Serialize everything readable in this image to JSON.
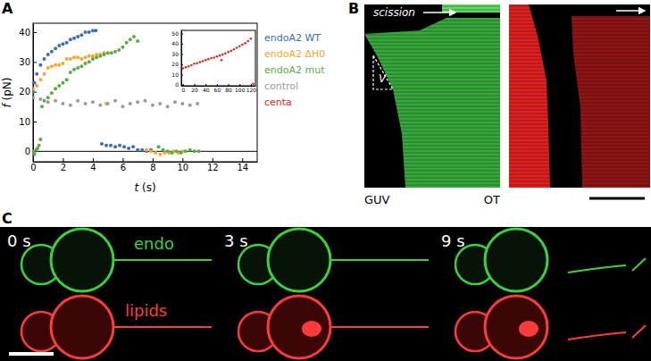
{
  "panel_labels": [
    "A",
    "B",
    "C"
  ],
  "chart_data": [
    {
      "type": "scatter",
      "x_label": "t (s)",
      "y_label": "f (pN)",
      "xlim": [
        0,
        15
      ],
      "ylim": [
        -3.5,
        43
      ],
      "xticks": [
        0,
        2,
        4,
        6,
        8,
        10,
        12,
        14
      ],
      "yticks": [
        0,
        10,
        20,
        30,
        40
      ],
      "hlines": [
        0
      ],
      "marker": "circle",
      "legend": "right",
      "series": [
        {
          "name": "endoA2 WT",
          "color": "#3a6fb8",
          "x": [
            0,
            0.1,
            0.25,
            0.5,
            0.75,
            1,
            1.25,
            1.5,
            1.75,
            2,
            2.25,
            2.5,
            2.75,
            3,
            3.25,
            3.5,
            3.75,
            4,
            4.2,
            4.6,
            4.9,
            5.2,
            5.5,
            5.8,
            6.1,
            6.4,
            6.7,
            7,
            7.3,
            7.6,
            7.9
          ],
          "values": [
            20,
            23,
            26,
            29,
            31,
            32.5,
            33.5,
            34.5,
            35.5,
            36,
            36.5,
            37.5,
            38,
            38.5,
            39,
            40,
            40,
            40.5,
            40.5,
            2.5,
            2,
            2,
            1.5,
            2,
            1.5,
            1,
            1.5,
            0.5,
            0.5,
            0,
            0.5
          ]
        },
        {
          "name": "endoA2 ΔH0",
          "color": "#f2a72e",
          "x": [
            0,
            0.25,
            0.5,
            0.75,
            1,
            1.25,
            1.5,
            1.75,
            2,
            2.25,
            2.5,
            2.75,
            3,
            3.25,
            3.5,
            3.75,
            4,
            4.25,
            4.5,
            4.75,
            4.9,
            7.6,
            7.9,
            8.2,
            8.5,
            8.8,
            9.1,
            9.4,
            9.7,
            10
          ],
          "values": [
            21,
            22,
            24,
            26,
            28,
            28.5,
            29,
            29,
            29.5,
            31,
            31,
            31.5,
            31.5,
            31,
            31.5,
            32,
            32,
            32.5,
            32.5,
            33,
            16,
            0.5,
            0,
            -0.5,
            -1,
            -0.5,
            -0.5,
            0,
            -0.5,
            0
          ]
        },
        {
          "name": "endoA2 mut",
          "color": "#5aab46",
          "x": [
            0,
            0.1,
            0.2,
            0.3,
            0.4,
            0.5,
            0.6,
            0.75,
            1,
            1.25,
            1.5,
            1.75,
            2,
            2.25,
            2.5,
            2.75,
            3,
            3.25,
            3.5,
            3.75,
            4,
            4.25,
            4.5,
            4.75,
            5,
            5.25,
            5.5,
            5.75,
            6,
            6.25,
            6.5,
            6.75,
            7,
            8.4,
            8.7,
            9,
            9.3,
            9.6,
            9.9,
            10.2,
            10.5,
            10.8,
            11.1
          ],
          "values": [
            0,
            -1,
            0.5,
            1,
            2,
            4,
            15,
            17,
            18,
            19.5,
            21,
            22,
            23,
            24,
            26.5,
            27.5,
            28,
            28.5,
            29.5,
            30,
            31,
            31.5,
            32,
            32.5,
            33,
            33,
            33.5,
            34,
            35,
            36.5,
            37.5,
            38.5,
            37,
            1.5,
            0.5,
            0,
            -0.5,
            0,
            -0.5,
            0,
            0.5,
            0,
            0
          ]
        },
        {
          "name": "control",
          "color": "#9a9a9a",
          "x": [
            0,
            0.5,
            1,
            1.5,
            2,
            2.5,
            3,
            3.5,
            4,
            4.5,
            5,
            5.5,
            6,
            6.5,
            7,
            7.5,
            8,
            8.5,
            9,
            9.5,
            10,
            10.5,
            11
          ],
          "values": [
            18,
            17.5,
            16.5,
            17,
            16,
            15.5,
            17,
            16,
            16.5,
            15.5,
            16,
            17,
            15,
            16,
            16.5,
            17,
            15.5,
            16,
            15,
            16.5,
            16,
            15.5,
            16
          ]
        }
      ]
    },
    {
      "type": "scatter",
      "xlim": [
        -3,
        128
      ],
      "ylim": [
        -1,
        53
      ],
      "xticks": [
        0,
        20,
        40,
        60,
        80,
        100,
        120
      ],
      "yticks": [
        0,
        10,
        20,
        30,
        40,
        50
      ],
      "marker": "circle",
      "series": [
        {
          "name": "centa",
          "color": "#e0261c",
          "x": [
            0,
            5,
            10,
            15,
            20,
            25,
            30,
            35,
            40,
            45,
            50,
            55,
            60,
            65,
            68,
            70,
            75,
            80,
            85,
            90,
            95,
            100,
            105,
            110,
            115,
            120,
            124
          ],
          "values": [
            16,
            17,
            18,
            19,
            20.5,
            21,
            22,
            23,
            24,
            25,
            26,
            26.5,
            27.5,
            28.5,
            24,
            29.5,
            30.5,
            32,
            33,
            34.5,
            36,
            37.5,
            39,
            40.5,
            42.5,
            45,
            1
          ]
        }
      ]
    }
  ],
  "panel_b": {
    "arrow_label": "scission",
    "velocity_label": "V",
    "left_label": "GUV",
    "right_label": "OT"
  },
  "panel_c": {
    "times": [
      "0 s",
      "3 s",
      "9 s"
    ],
    "channels": [
      "endo",
      "lipids"
    ]
  }
}
